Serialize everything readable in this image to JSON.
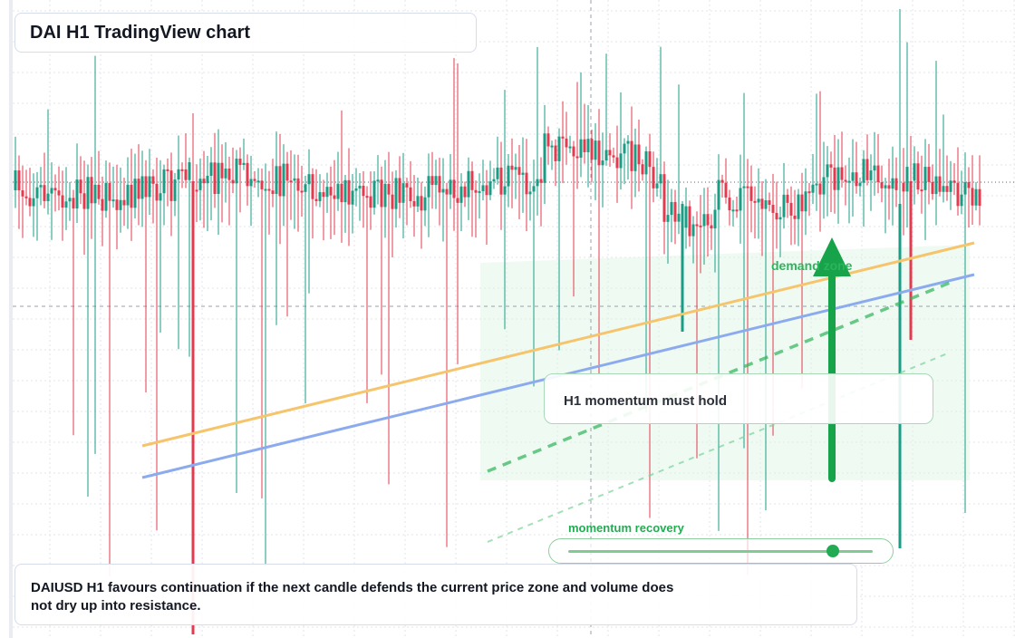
{
  "title": "DAI H1 TradingView chart",
  "hint": "H1 momentum must hold",
  "note": "DAIUSD H1 favours continuation if the next candle defends the current price zone and volume does not dry up into resistance.",
  "zone_label": "demand zone",
  "slider": {
    "label": "momentum recovery",
    "value": 0.87
  },
  "colors": {
    "up": "#1a9d84",
    "down": "#e23b4f",
    "orange_line": "#f6c46a",
    "blue_line": "#8cabef",
    "green_trend": "#2fb457",
    "arrow": "#16a34a"
  },
  "chart_data": {
    "type": "candlestick",
    "symbol": "DAIUSD",
    "timeframe": "H1",
    "reference_level": 1.0,
    "ylim": [
      0.97,
      1.035
    ],
    "grid": true
  }
}
